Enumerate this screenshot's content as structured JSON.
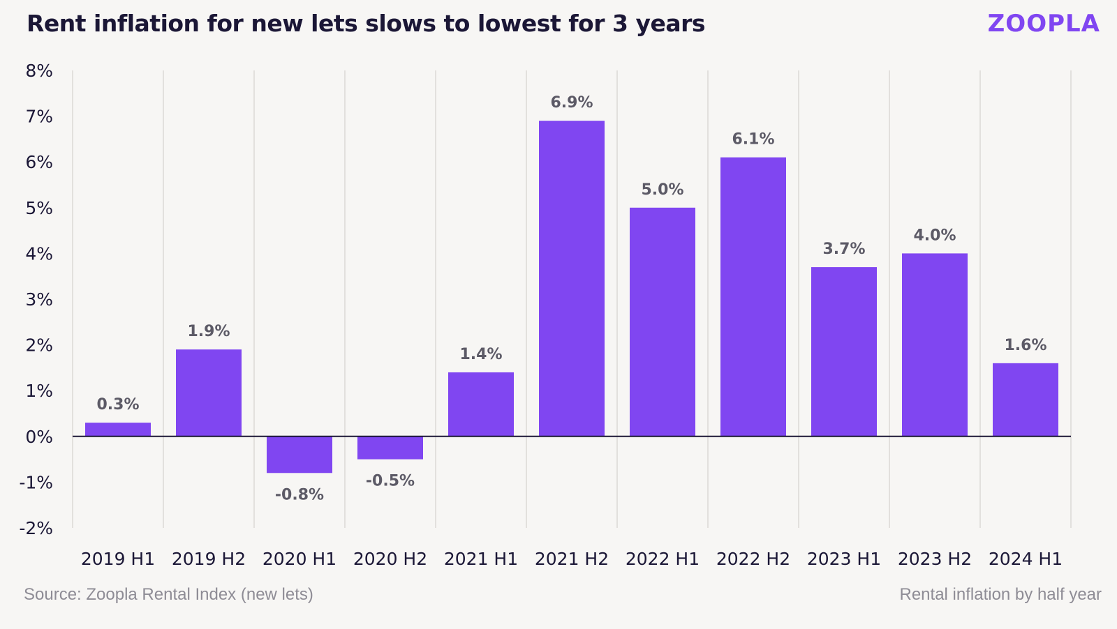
{
  "title": "Rent inflation for new lets slows to lowest for 3 years",
  "logo_text": "ZOOPLA",
  "footer": {
    "source": "Source: Zoopla Rental Index (new lets)",
    "note": "Rental inflation by half year"
  },
  "colors": {
    "bar": "#8046f1",
    "logo": "#8046f1",
    "background": "#f7f6f4",
    "text": "#1b1736",
    "gridline": "#e2e0dd",
    "data_label": "#5c5a66"
  },
  "chart_data": {
    "type": "bar",
    "title": "Rent inflation for new lets slows to lowest for 3 years",
    "xlabel": "",
    "ylabel": "",
    "categories": [
      "2019 H1",
      "2019 H2",
      "2020 H1",
      "2020 H2",
      "2021 H1",
      "2021 H2",
      "2022 H1",
      "2022 H2",
      "2023 H1",
      "2023 H2",
      "2024 H1"
    ],
    "values": [
      0.3,
      1.9,
      -0.8,
      -0.5,
      1.4,
      6.9,
      5.0,
      6.1,
      3.7,
      4.0,
      1.6
    ],
    "data_labels": [
      "0.3%",
      "1.9%",
      "-0.8%",
      "-0.5%",
      "1.4%",
      "6.9%",
      "5.0%",
      "6.1%",
      "3.7%",
      "4.0%",
      "1.6%"
    ],
    "ylim": [
      -2,
      8
    ],
    "yticks": [
      8,
      7,
      6,
      5,
      4,
      3,
      2,
      1,
      0,
      -1,
      -2
    ],
    "ytick_labels": [
      "8%",
      "7%",
      "6%",
      "5%",
      "4%",
      "3%",
      "2%",
      "1%",
      "0%",
      "-1%",
      "-2%"
    ],
    "grid": "vertical",
    "legend": "none"
  }
}
